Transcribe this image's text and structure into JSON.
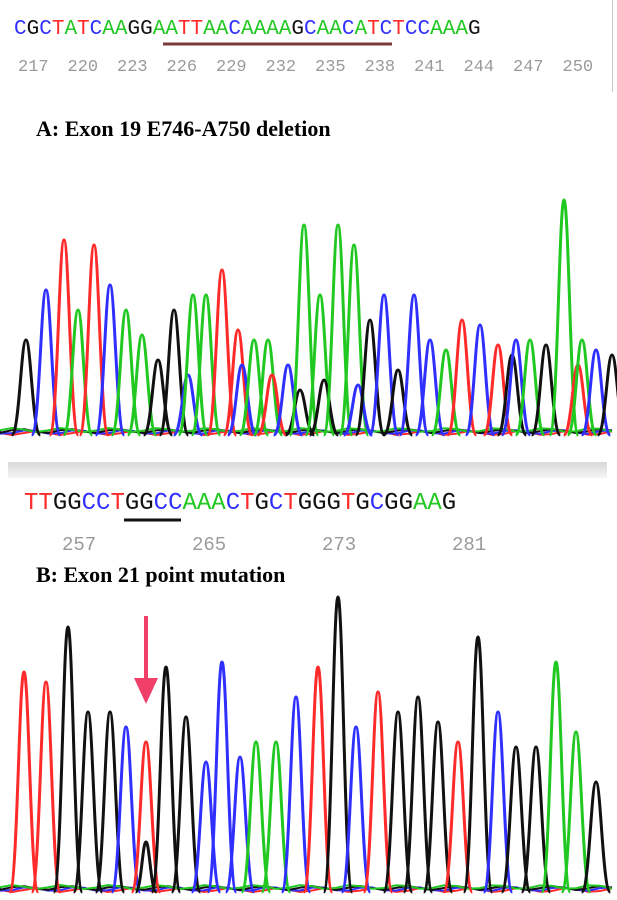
{
  "panel_a": {
    "title": "A: Exon 19 E746-A750 deletion",
    "sequence": "CGCTATCAAGGAATTAACAAAAGCAACATCTCCAAAG",
    "positions": [
      "217",
      "220",
      "223",
      "226",
      "229",
      "232",
      "235",
      "238",
      "241",
      "244",
      "247",
      "250"
    ],
    "underline_range": [
      10,
      23
    ]
  },
  "panel_b": {
    "title": "B: Exon 21 point mutation",
    "sequence": "TTGGCCTGGCCAAACTGCTGGGTGCGGAAG",
    "positions": [
      "257",
      "265",
      "273",
      "281"
    ],
    "underline_range": [
      5,
      8
    ],
    "arrow_color": "#f0406a"
  },
  "colors": {
    "A": "#22c822",
    "C": "#2f2fff",
    "G": "#111111",
    "T": "#ff2a2a"
  }
}
